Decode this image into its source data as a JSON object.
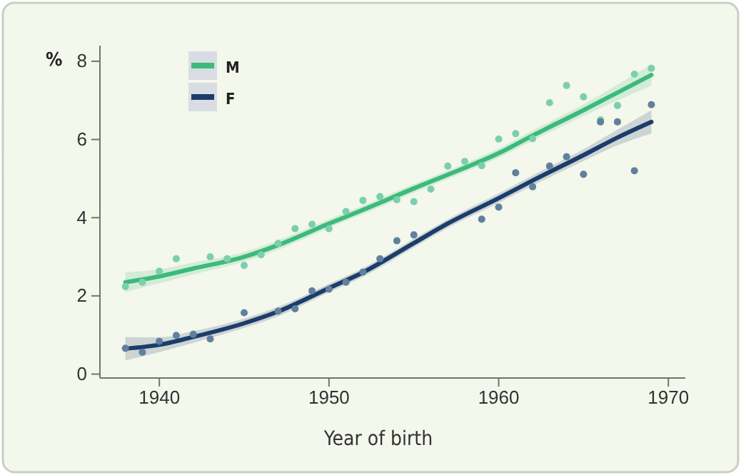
{
  "chart_data": {
    "type": "line",
    "ylabel": "%",
    "xlabel": "Year of birth",
    "xlim": [
      1936.5,
      1971
    ],
    "ylim": [
      -0.1,
      8.4
    ],
    "xticks": [
      1940,
      1950,
      1960,
      1970
    ],
    "yticks": [
      0,
      2,
      4,
      6,
      8
    ],
    "grid": false,
    "legend": "top left",
    "series": [
      {
        "type": "scatter",
        "color": "#7ccfad",
        "marker": "circle",
        "x": [
          1938,
          1939,
          1940,
          1941,
          1943,
          1944,
          1945,
          1946,
          1947,
          1948,
          1949,
          1950,
          1951,
          1952,
          1953,
          1954,
          1955,
          1956,
          1957,
          1958,
          1959,
          1960,
          1961,
          1962,
          1963,
          1964,
          1965,
          1966,
          1967,
          1968,
          1969
        ],
        "values": [
          2.24,
          2.35,
          2.63,
          2.95,
          3.0,
          2.95,
          2.78,
          3.05,
          3.34,
          3.72,
          3.83,
          3.72,
          4.16,
          4.44,
          4.54,
          4.46,
          4.41,
          4.73,
          5.32,
          5.44,
          5.33,
          6.01,
          6.15,
          6.02,
          6.94,
          7.38,
          7.09,
          6.5,
          6.87,
          7.67,
          7.82
        ]
      },
      {
        "type": "scatter",
        "color": "#62809e",
        "marker": "circle",
        "x": [
          1938,
          1939,
          1940,
          1941,
          1942,
          1943,
          1945,
          1947,
          1948,
          1949,
          1950,
          1951,
          1952,
          1953,
          1954,
          1955,
          1959,
          1960,
          1961,
          1962,
          1963,
          1964,
          1965,
          1966,
          1967,
          1968,
          1969
        ],
        "values": [
          0.66,
          0.56,
          0.84,
          0.99,
          1.02,
          0.9,
          1.57,
          1.61,
          1.67,
          2.13,
          2.17,
          2.35,
          2.61,
          2.95,
          3.41,
          3.56,
          3.96,
          4.27,
          5.15,
          4.79,
          5.32,
          5.56,
          5.11,
          6.45,
          6.45,
          5.2,
          6.89
        ]
      },
      {
        "type": "line",
        "name": "M",
        "color": "#3dba7a",
        "x": [
          1938,
          1940,
          1942,
          1945,
          1947,
          1950,
          1952,
          1955,
          1957,
          1960,
          1962,
          1965,
          1967,
          1969
        ],
        "values": [
          2.35,
          2.5,
          2.7,
          3.0,
          3.3,
          3.85,
          4.2,
          4.75,
          5.1,
          5.65,
          6.1,
          6.75,
          7.2,
          7.65
        ],
        "lower": [
          2.1,
          2.32,
          2.55,
          2.88,
          3.18,
          3.74,
          4.09,
          4.64,
          4.99,
          5.53,
          5.97,
          6.6,
          7.0,
          7.38
        ],
        "upper": [
          2.6,
          2.68,
          2.85,
          3.12,
          3.42,
          3.96,
          4.31,
          4.86,
          5.21,
          5.77,
          6.23,
          6.9,
          7.4,
          7.92
        ]
      },
      {
        "type": "line",
        "name": "F",
        "color": "#1c3d6b",
        "x": [
          1938,
          1940,
          1942,
          1945,
          1947,
          1950,
          1952,
          1955,
          1957,
          1960,
          1962,
          1965,
          1967,
          1969
        ],
        "values": [
          0.65,
          0.75,
          0.95,
          1.3,
          1.6,
          2.2,
          2.6,
          3.35,
          3.85,
          4.5,
          4.95,
          5.6,
          6.05,
          6.45
        ],
        "lower": [
          0.35,
          0.56,
          0.8,
          1.18,
          1.48,
          2.09,
          2.49,
          3.24,
          3.74,
          4.38,
          4.82,
          5.45,
          5.85,
          6.15
        ],
        "upper": [
          0.95,
          0.94,
          1.1,
          1.42,
          1.72,
          2.31,
          2.71,
          3.46,
          3.96,
          4.62,
          5.08,
          5.75,
          6.25,
          6.75
        ]
      }
    ]
  }
}
